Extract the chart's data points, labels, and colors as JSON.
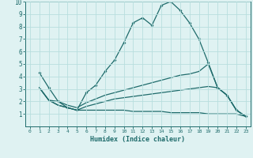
{
  "title": "",
  "xlabel": "Humidex (Indice chaleur)",
  "xlim": [
    -0.5,
    23.5
  ],
  "ylim": [
    0,
    10
  ],
  "xticks": [
    0,
    1,
    2,
    3,
    4,
    5,
    6,
    7,
    8,
    9,
    10,
    11,
    12,
    13,
    14,
    15,
    16,
    17,
    18,
    19,
    20,
    21,
    22,
    23
  ],
  "yticks": [
    1,
    2,
    3,
    4,
    5,
    6,
    7,
    8,
    9,
    10
  ],
  "bg_color": "#dff2f2",
  "grid_color": "#b8dede",
  "line_color": "#1e6b6b",
  "line1_x": [
    1,
    2,
    3,
    4,
    5,
    6,
    7,
    8,
    9,
    10,
    11,
    12,
    13,
    14,
    15,
    16,
    17,
    18,
    19,
    20,
    21,
    22,
    23
  ],
  "line1_y": [
    4.3,
    3.1,
    2.0,
    1.5,
    1.3,
    2.7,
    3.3,
    4.4,
    5.3,
    6.7,
    8.3,
    8.7,
    8.1,
    9.7,
    10.0,
    9.3,
    8.3,
    7.0,
    5.1,
    3.1,
    2.5,
    1.3,
    0.8
  ],
  "line2_x": [
    1,
    2,
    3,
    4,
    5,
    6,
    7,
    8,
    9,
    10,
    11,
    12,
    13,
    14,
    15,
    16,
    17,
    18,
    19,
    20,
    21,
    22,
    23
  ],
  "line2_y": [
    3.1,
    2.1,
    2.0,
    1.7,
    1.5,
    1.9,
    2.2,
    2.5,
    2.7,
    2.9,
    3.1,
    3.3,
    3.5,
    3.7,
    3.9,
    4.1,
    4.2,
    4.4,
    5.0,
    3.1,
    2.5,
    1.3,
    0.8
  ],
  "line3_x": [
    1,
    2,
    3,
    4,
    5,
    6,
    7,
    8,
    9,
    10,
    11,
    12,
    13,
    14,
    15,
    16,
    17,
    18,
    19,
    20,
    21,
    22,
    23
  ],
  "line3_y": [
    3.1,
    2.1,
    1.7,
    1.5,
    1.3,
    1.6,
    1.8,
    2.0,
    2.2,
    2.3,
    2.4,
    2.5,
    2.6,
    2.7,
    2.8,
    2.9,
    3.0,
    3.1,
    3.2,
    3.1,
    2.5,
    1.3,
    0.8
  ],
  "line4_x": [
    1,
    2,
    3,
    4,
    5,
    6,
    7,
    8,
    9,
    10,
    11,
    12,
    13,
    14,
    15,
    16,
    17,
    18,
    19,
    20,
    21,
    22,
    23
  ],
  "line4_y": [
    3.1,
    2.1,
    1.7,
    1.5,
    1.3,
    1.3,
    1.3,
    1.3,
    1.3,
    1.3,
    1.2,
    1.2,
    1.2,
    1.2,
    1.1,
    1.1,
    1.1,
    1.1,
    1.0,
    1.0,
    1.0,
    1.0,
    0.8
  ]
}
